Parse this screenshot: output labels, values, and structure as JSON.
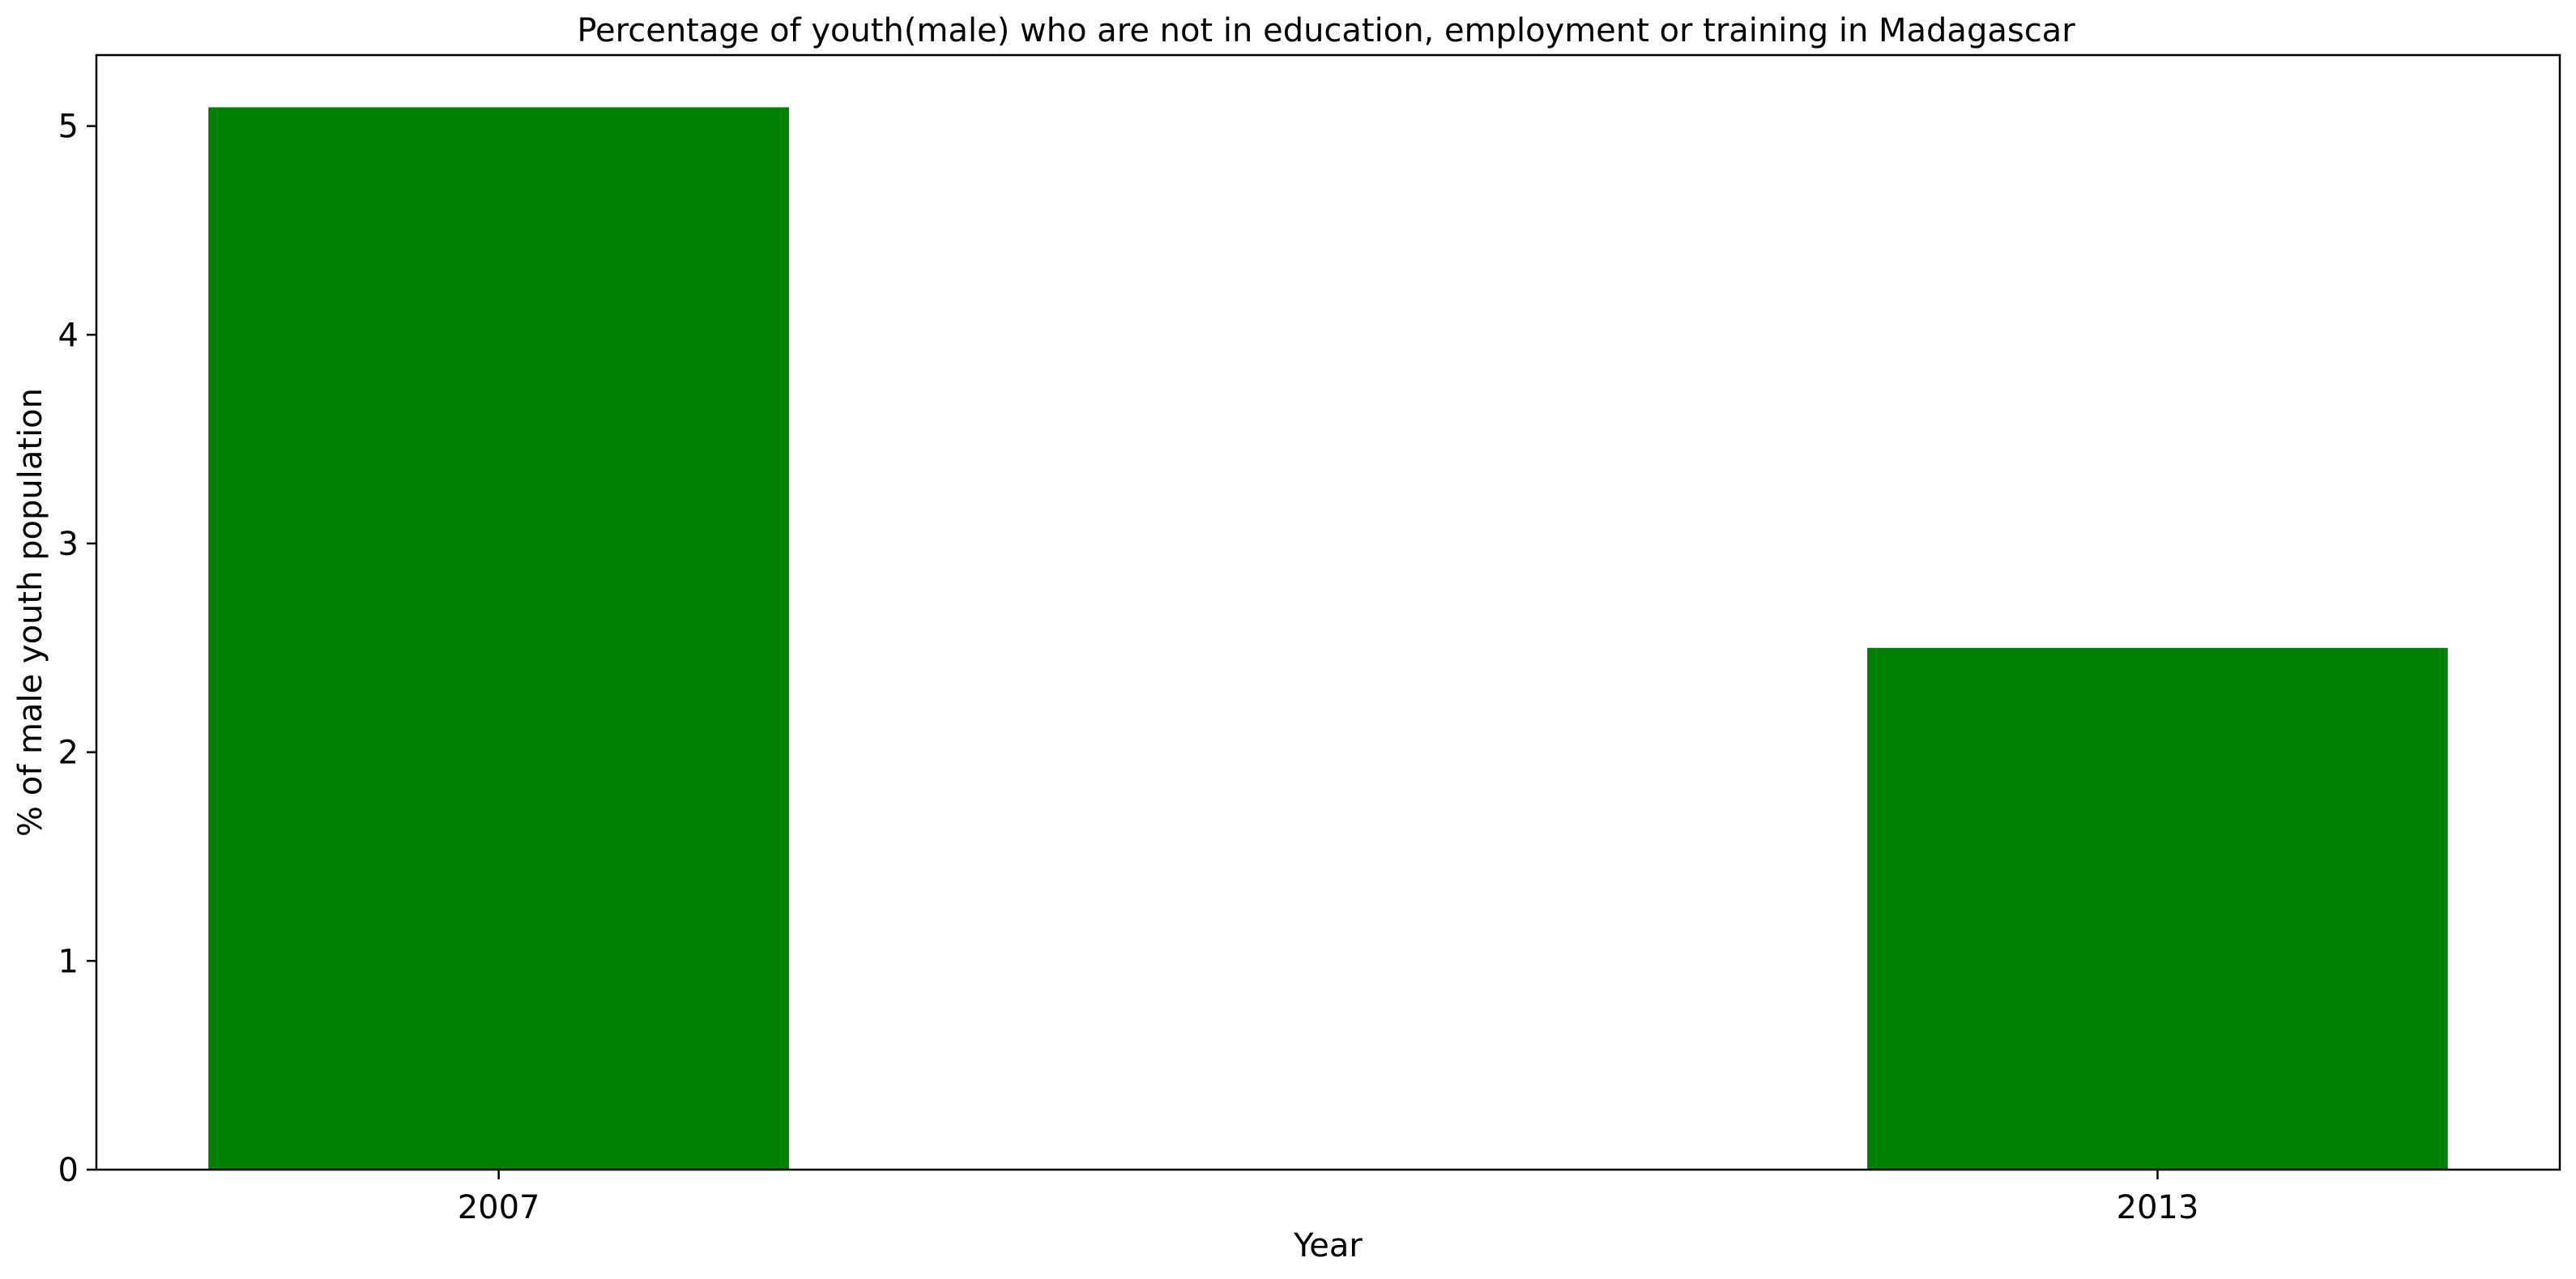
{
  "chart_data": {
    "type": "bar",
    "title": "Percentage of youth(male) who are not in education, employment or training in Madagascar",
    "xlabel": "Year",
    "ylabel": "% of male youth population",
    "categories": [
      "2007",
      "2013"
    ],
    "series": [
      {
        "values": [
          5.09,
          2.5
        ],
        "color": "#008000"
      }
    ],
    "ylim": [
      0,
      5.34
    ],
    "yticks": [
      "0",
      "1",
      "2",
      "3",
      "4",
      "5"
    ],
    "grid": false,
    "legend": "none"
  }
}
